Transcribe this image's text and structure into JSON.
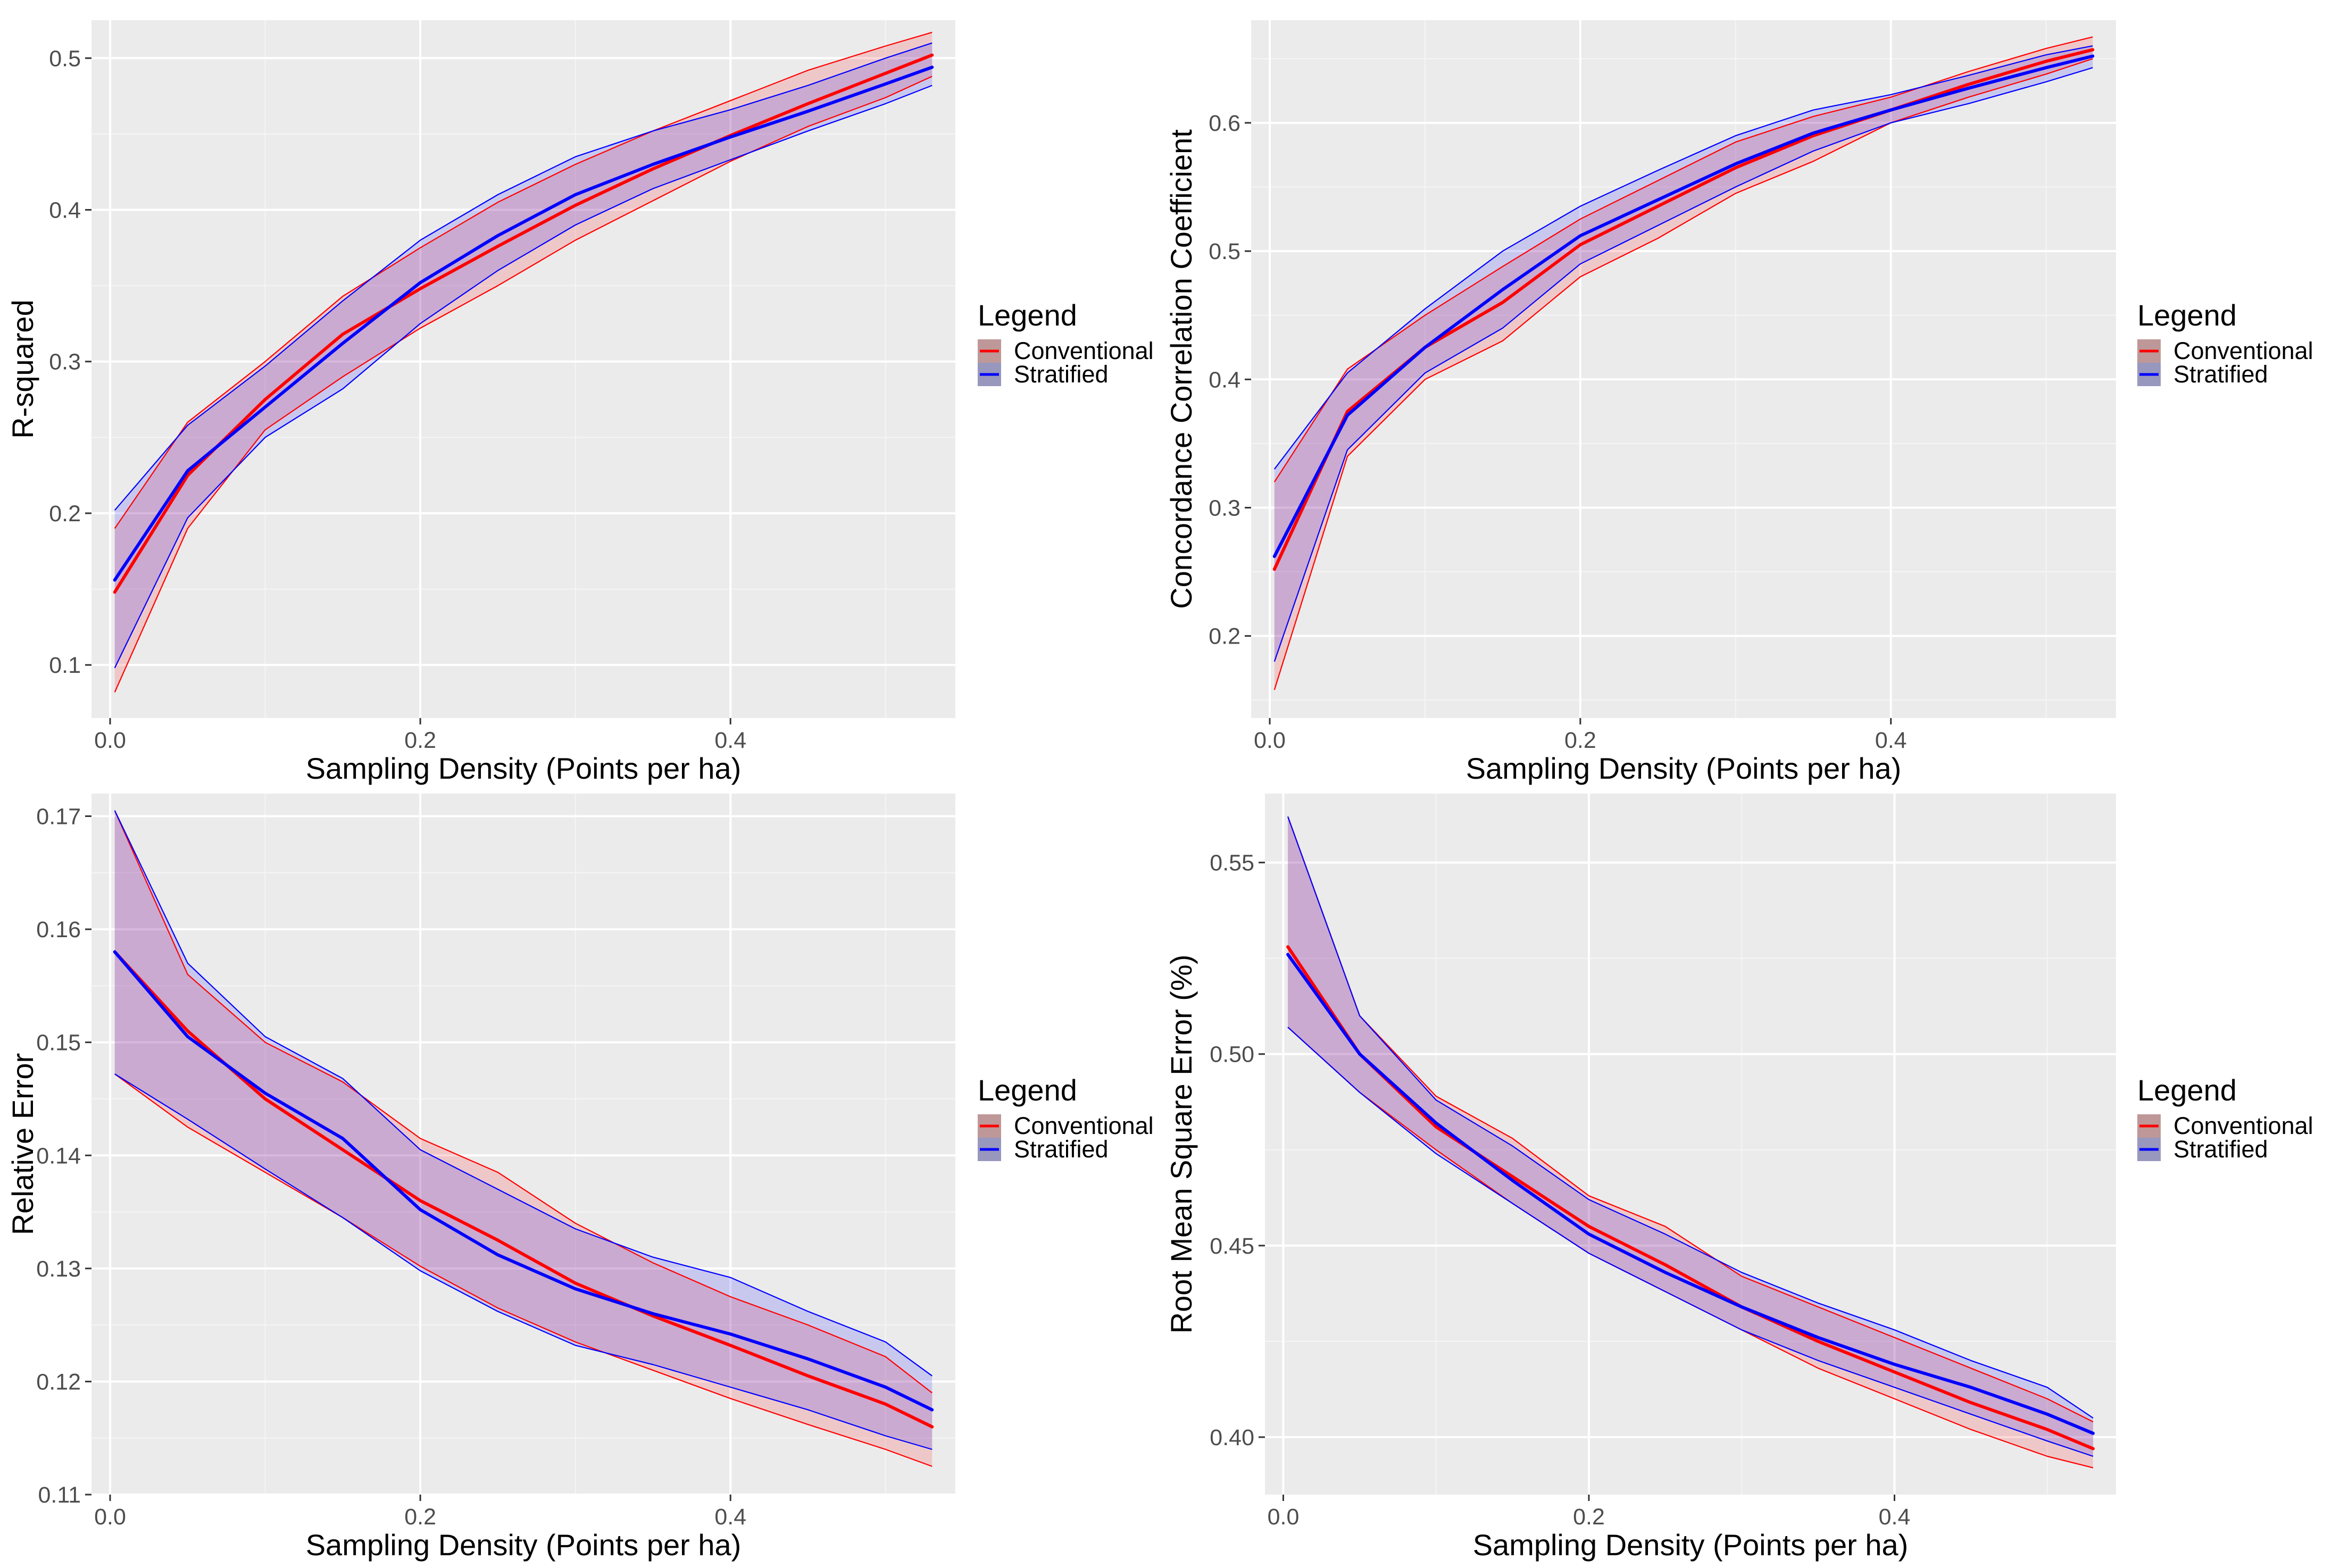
{
  "chart_data": [
    {
      "type": "line",
      "xlabel": "Sampling Density (Points per ha)",
      "ylabel": "R-squared",
      "xlim": [
        -0.012,
        0.545
      ],
      "ylim": [
        0.065,
        0.525
      ],
      "x_ticks": [
        0.0,
        0.2,
        0.4
      ],
      "x_tick_labels": [
        "0.0",
        "0.2",
        "0.4"
      ],
      "y_ticks": [
        0.1,
        0.2,
        0.3,
        0.4,
        0.5
      ],
      "y_tick_labels": [
        "0.1",
        "0.2",
        "0.3",
        "0.4",
        "0.5"
      ],
      "grid": true,
      "legend": {
        "title": "Legend",
        "position": "right",
        "entries": [
          "Conventional",
          "Stratified"
        ]
      },
      "x": [
        0.003,
        0.05,
        0.1,
        0.15,
        0.2,
        0.25,
        0.3,
        0.35,
        0.4,
        0.45,
        0.5,
        0.53
      ],
      "series": [
        {
          "name": "Conventional",
          "color": "#ff0000",
          "values": [
            0.148,
            0.225,
            0.275,
            0.318,
            0.348,
            0.376,
            0.403,
            0.427,
            0.449,
            0.47,
            0.49,
            0.502
          ],
          "lower": [
            0.082,
            0.19,
            0.255,
            0.29,
            0.322,
            0.35,
            0.38,
            0.406,
            0.432,
            0.455,
            0.474,
            0.488
          ],
          "upper": [
            0.19,
            0.26,
            0.3,
            0.343,
            0.375,
            0.405,
            0.43,
            0.452,
            0.472,
            0.492,
            0.508,
            0.517
          ]
        },
        {
          "name": "Stratified",
          "color": "#0000ff",
          "values": [
            0.156,
            0.228,
            0.27,
            0.312,
            0.352,
            0.383,
            0.41,
            0.43,
            0.448,
            0.465,
            0.483,
            0.494
          ],
          "lower": [
            0.098,
            0.197,
            0.25,
            0.282,
            0.325,
            0.36,
            0.39,
            0.414,
            0.433,
            0.452,
            0.47,
            0.482
          ],
          "upper": [
            0.202,
            0.258,
            0.297,
            0.34,
            0.38,
            0.41,
            0.435,
            0.452,
            0.466,
            0.482,
            0.5,
            0.51
          ]
        }
      ]
    },
    {
      "type": "line",
      "xlabel": "Sampling Density (Points per ha)",
      "ylabel": "Concordance Correlation Coefficient",
      "xlim": [
        -0.012,
        0.545
      ],
      "ylim": [
        0.136,
        0.68
      ],
      "x_ticks": [
        0.0,
        0.2,
        0.4
      ],
      "x_tick_labels": [
        "0.0",
        "0.2",
        "0.4"
      ],
      "y_ticks": [
        0.2,
        0.3,
        0.4,
        0.5,
        0.6
      ],
      "y_tick_labels": [
        "0.2",
        "0.3",
        "0.4",
        "0.5",
        "0.6"
      ],
      "grid": true,
      "legend": {
        "title": "Legend",
        "position": "right",
        "entries": [
          "Conventional",
          "Stratified"
        ]
      },
      "x": [
        0.003,
        0.05,
        0.1,
        0.15,
        0.2,
        0.25,
        0.3,
        0.35,
        0.4,
        0.45,
        0.5,
        0.53
      ],
      "series": [
        {
          "name": "Conventional",
          "color": "#ff0000",
          "values": [
            0.252,
            0.375,
            0.425,
            0.46,
            0.505,
            0.535,
            0.565,
            0.59,
            0.61,
            0.63,
            0.648,
            0.657
          ],
          "lower": [
            0.158,
            0.34,
            0.4,
            0.43,
            0.48,
            0.51,
            0.545,
            0.57,
            0.6,
            0.62,
            0.638,
            0.65
          ],
          "upper": [
            0.32,
            0.408,
            0.45,
            0.488,
            0.525,
            0.555,
            0.585,
            0.605,
            0.62,
            0.64,
            0.658,
            0.667
          ]
        },
        {
          "name": "Stratified",
          "color": "#0000ff",
          "values": [
            0.262,
            0.372,
            0.425,
            0.47,
            0.512,
            0.54,
            0.568,
            0.592,
            0.61,
            0.627,
            0.643,
            0.652
          ],
          "lower": [
            0.18,
            0.345,
            0.405,
            0.44,
            0.49,
            0.52,
            0.55,
            0.578,
            0.6,
            0.615,
            0.632,
            0.643
          ],
          "upper": [
            0.33,
            0.405,
            0.455,
            0.5,
            0.535,
            0.563,
            0.59,
            0.61,
            0.622,
            0.637,
            0.653,
            0.66
          ]
        }
      ]
    },
    {
      "type": "line",
      "xlabel": "Sampling Density (Points per ha)",
      "ylabel": "Relative Error",
      "xlim": [
        -0.012,
        0.545
      ],
      "ylim": [
        0.11,
        0.172
      ],
      "x_ticks": [
        0.0,
        0.2,
        0.4
      ],
      "x_tick_labels": [
        "0.0",
        "0.2",
        "0.4"
      ],
      "y_ticks": [
        0.11,
        0.12,
        0.13,
        0.14,
        0.15,
        0.16,
        0.17
      ],
      "y_tick_labels": [
        "0.11",
        "0.12",
        "0.13",
        "0.14",
        "0.15",
        "0.16",
        "0.17"
      ],
      "grid": true,
      "legend": {
        "title": "Legend",
        "position": "right",
        "entries": [
          "Conventional",
          "Stratified"
        ]
      },
      "x": [
        0.003,
        0.05,
        0.1,
        0.15,
        0.2,
        0.25,
        0.3,
        0.35,
        0.4,
        0.45,
        0.5,
        0.53
      ],
      "series": [
        {
          "name": "Conventional",
          "color": "#ff0000",
          "values": [
            0.158,
            0.151,
            0.145,
            0.1405,
            0.136,
            0.1325,
            0.1287,
            0.1258,
            0.1232,
            0.1205,
            0.118,
            0.116
          ],
          "lower": [
            0.1472,
            0.1425,
            0.1385,
            0.1345,
            0.1302,
            0.1265,
            0.1235,
            0.121,
            0.1185,
            0.1162,
            0.114,
            0.1125
          ],
          "upper": [
            0.1705,
            0.156,
            0.15,
            0.1465,
            0.1415,
            0.1385,
            0.134,
            0.1305,
            0.1275,
            0.125,
            0.1222,
            0.119
          ]
        },
        {
          "name": "Stratified",
          "color": "#0000ff",
          "values": [
            0.158,
            0.1505,
            0.1455,
            0.1415,
            0.1352,
            0.1312,
            0.1282,
            0.126,
            0.1242,
            0.122,
            0.1195,
            0.1175
          ],
          "lower": [
            0.1472,
            0.1432,
            0.1388,
            0.1345,
            0.1298,
            0.1262,
            0.1232,
            0.1215,
            0.1195,
            0.1175,
            0.1152,
            0.114
          ],
          "upper": [
            0.1705,
            0.157,
            0.1505,
            0.1468,
            0.1405,
            0.137,
            0.1335,
            0.131,
            0.1292,
            0.1262,
            0.1235,
            0.1205
          ]
        }
      ]
    },
    {
      "type": "line",
      "xlabel": "Sampling Density (Points per ha)",
      "ylabel": "Root Mean Square Error (%)",
      "xlim": [
        -0.012,
        0.545
      ],
      "ylim": [
        0.385,
        0.568
      ],
      "x_ticks": [
        0.0,
        0.2,
        0.4
      ],
      "x_tick_labels": [
        "0.0",
        "0.2",
        "0.4"
      ],
      "y_ticks": [
        0.4,
        0.45,
        0.5,
        0.55
      ],
      "y_tick_labels": [
        "0.40",
        "0.45",
        "0.50",
        "0.55"
      ],
      "grid": true,
      "legend": {
        "title": "Legend",
        "position": "right",
        "entries": [
          "Conventional",
          "Stratified"
        ]
      },
      "x": [
        0.003,
        0.05,
        0.1,
        0.15,
        0.2,
        0.25,
        0.3,
        0.35,
        0.4,
        0.45,
        0.5,
        0.53
      ],
      "series": [
        {
          "name": "Conventional",
          "color": "#ff0000",
          "values": [
            0.528,
            0.5,
            0.481,
            0.468,
            0.455,
            0.445,
            0.434,
            0.425,
            0.417,
            0.409,
            0.402,
            0.397
          ],
          "lower": [
            0.507,
            0.49,
            0.475,
            0.461,
            0.448,
            0.438,
            0.428,
            0.418,
            0.41,
            0.402,
            0.395,
            0.392
          ],
          "upper": [
            0.562,
            0.51,
            0.489,
            0.478,
            0.463,
            0.455,
            0.442,
            0.434,
            0.426,
            0.418,
            0.41,
            0.404
          ]
        },
        {
          "name": "Stratified",
          "color": "#0000ff",
          "values": [
            0.526,
            0.5,
            0.482,
            0.467,
            0.453,
            0.443,
            0.434,
            0.426,
            0.419,
            0.413,
            0.406,
            0.401
          ],
          "lower": [
            0.507,
            0.49,
            0.474,
            0.461,
            0.448,
            0.438,
            0.428,
            0.42,
            0.413,
            0.406,
            0.399,
            0.395
          ],
          "upper": [
            0.562,
            0.51,
            0.488,
            0.476,
            0.462,
            0.453,
            0.443,
            0.435,
            0.428,
            0.42,
            0.413,
            0.405
          ]
        }
      ]
    }
  ]
}
